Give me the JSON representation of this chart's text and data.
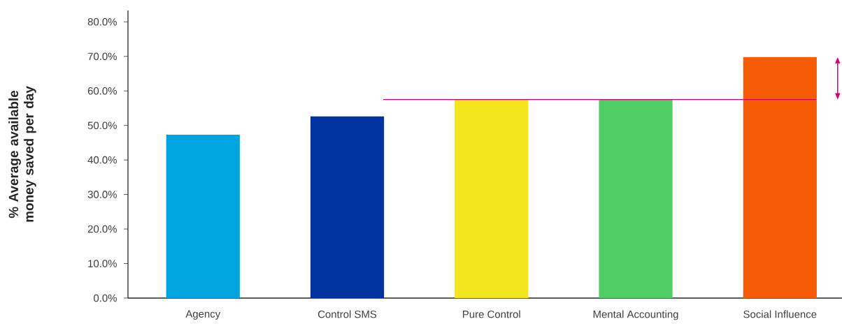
{
  "chart_data": {
    "type": "bar",
    "ylabel": "% Average available money saved per day",
    "categories": [
      "Agency",
      "Control SMS",
      "Pure Control",
      "Mental Accounting",
      "Social Influence"
    ],
    "values": [
      47.3,
      52.6,
      57.6,
      57.4,
      69.8
    ],
    "colors": [
      "#00a5df",
      "#0033a0",
      "#f3e61f",
      "#50cd64",
      "#f65c05"
    ],
    "ylim": [
      0,
      83.3
    ],
    "yticks": [
      {
        "value": 0,
        "label": "0.0%"
      },
      {
        "value": 10,
        "label": "10.0%"
      },
      {
        "value": 20,
        "label": "20.0%"
      },
      {
        "value": 30,
        "label": "30.0%"
      },
      {
        "value": 40,
        "label": "40.0%"
      },
      {
        "value": 50,
        "label": "50.0%"
      },
      {
        "value": 60,
        "label": "60.0%"
      },
      {
        "value": 70,
        "label": "70.0%"
      },
      {
        "value": 80,
        "label": "80.0%"
      }
    ],
    "ref_lines": [
      {
        "axis": "y",
        "value": 57.5,
        "color": "#d6006e"
      }
    ],
    "grid": false
  }
}
